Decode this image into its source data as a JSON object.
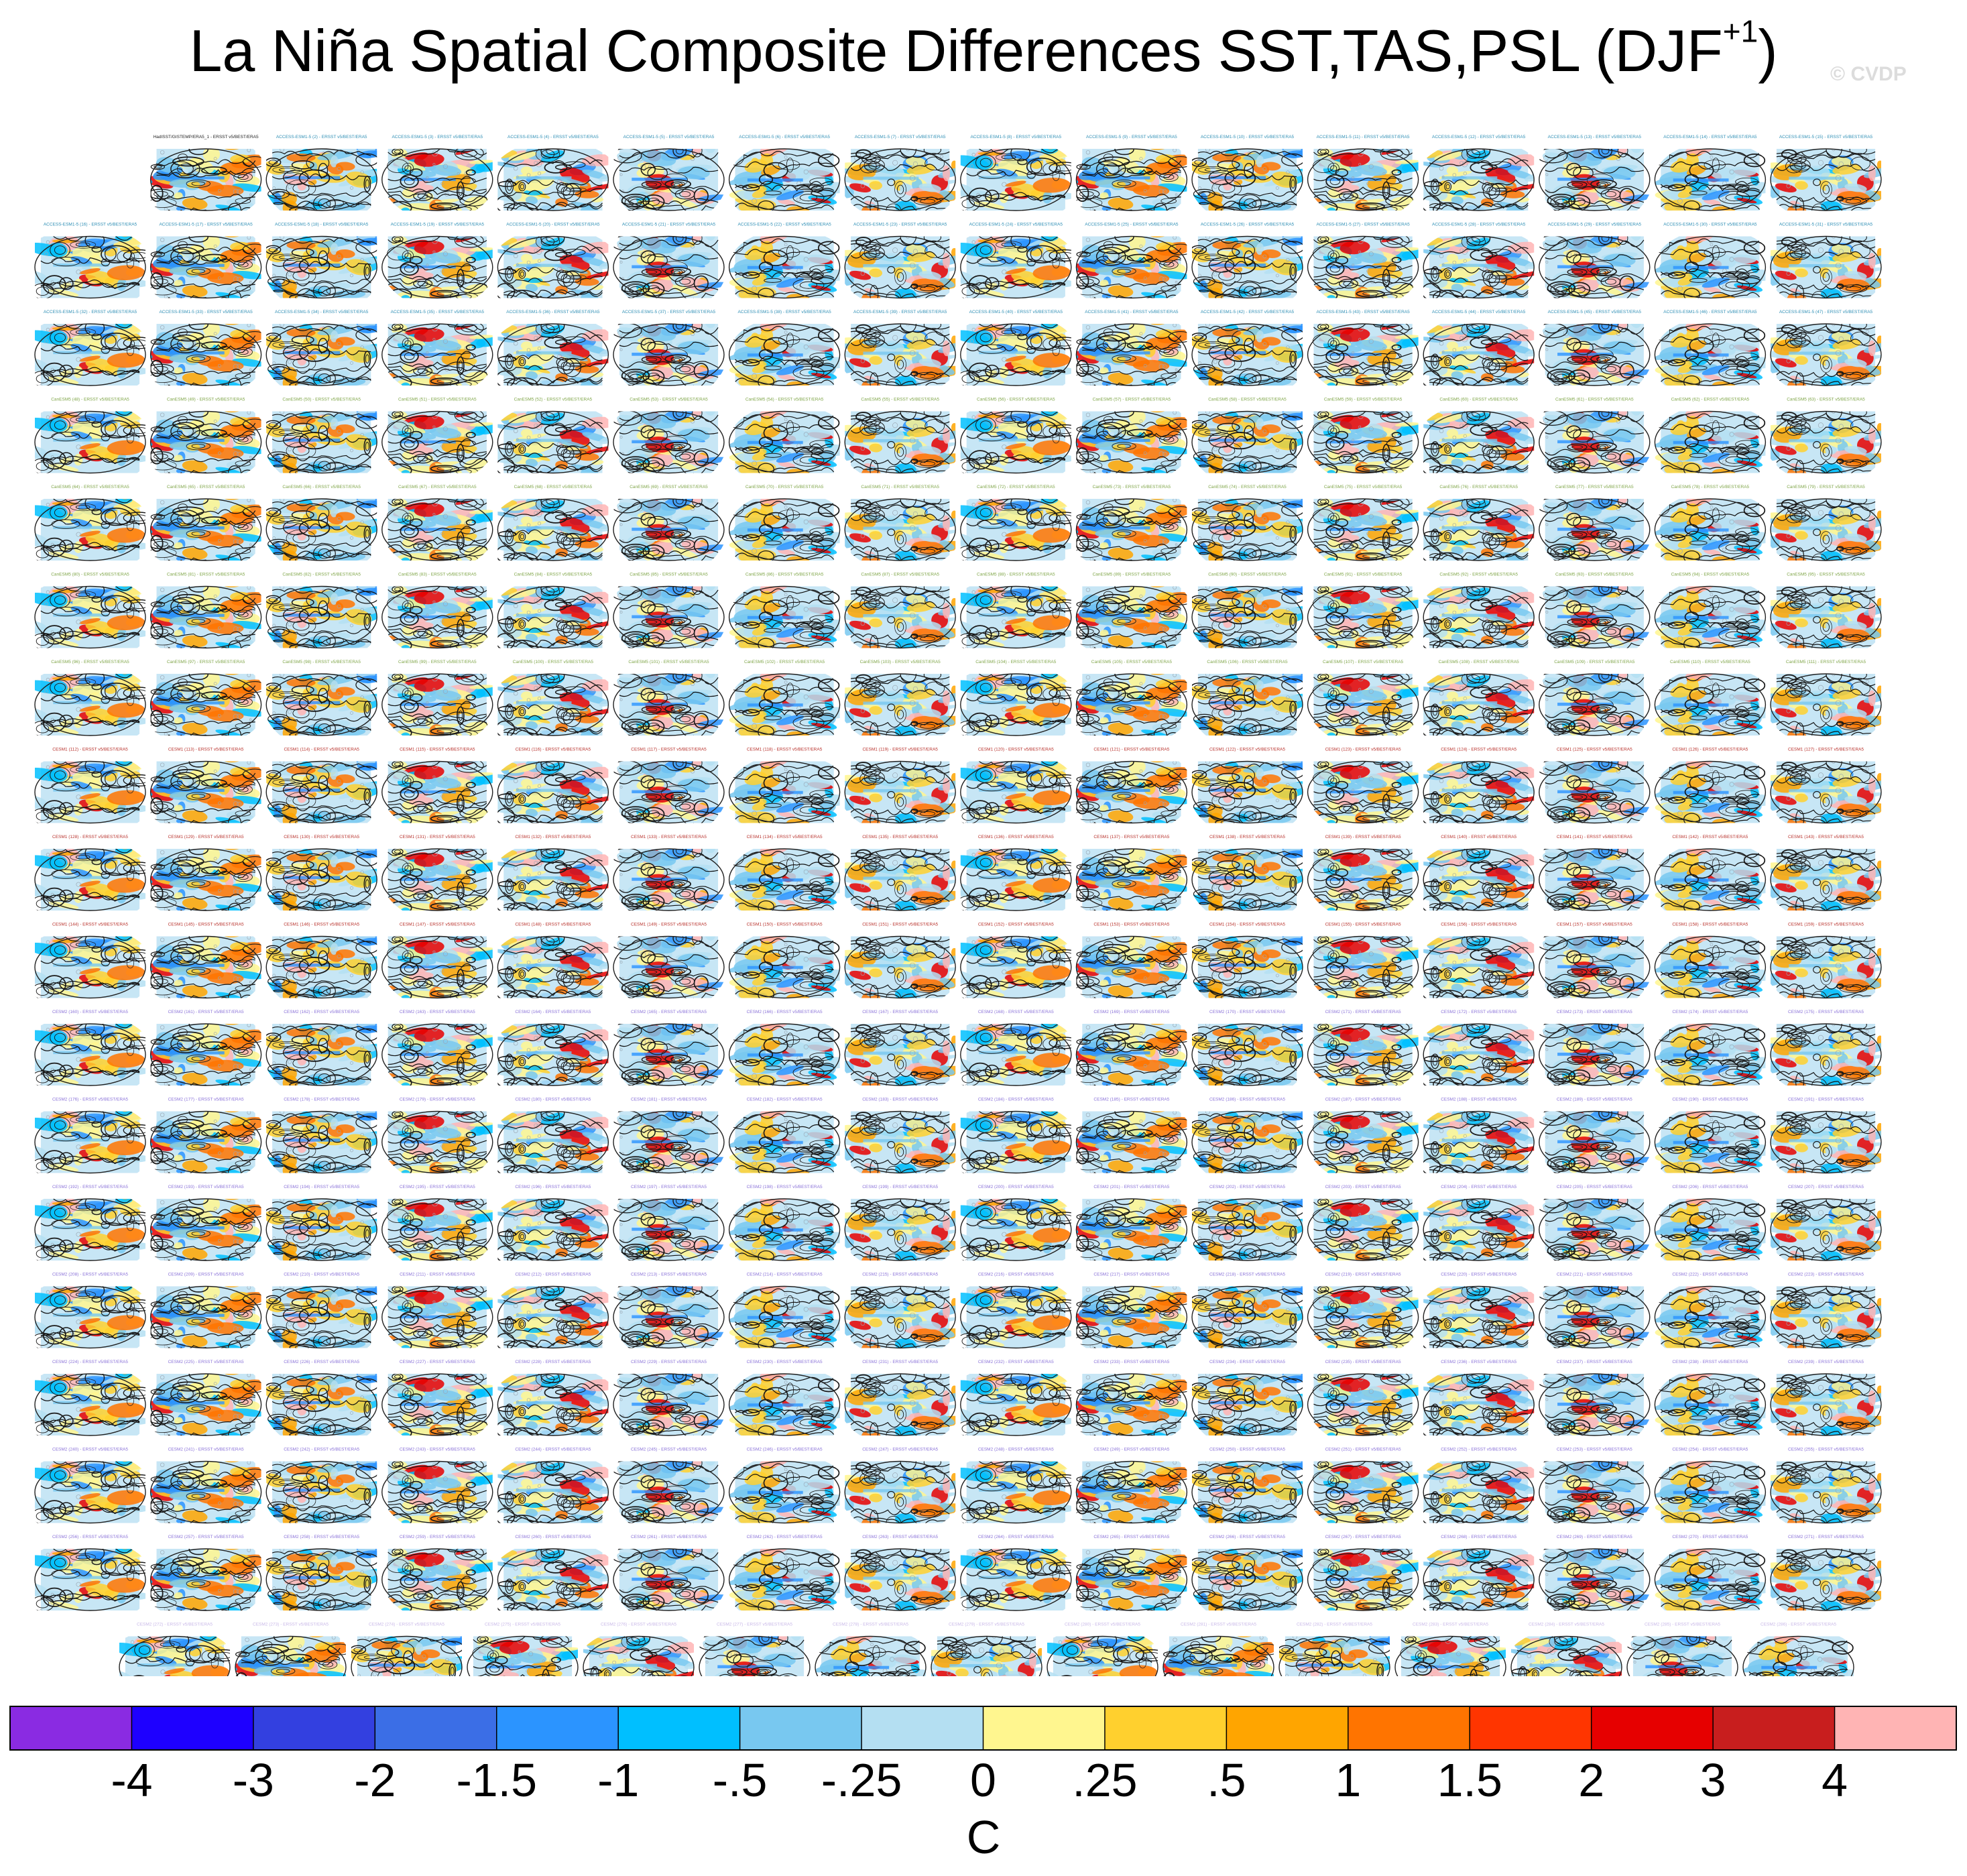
{
  "chart_data": {
    "type": "heatmap",
    "title": "La Niña Spatial Composite Differences SST,TAS,PSL (DJF",
    "title_superscript": "+1",
    "title_closing": ")",
    "watermark": "© CVDP",
    "layout": {
      "rows": 18,
      "columns": 16,
      "panel_count": 286,
      "first_row_panels": 15,
      "last_row_panels": 15
    },
    "first_panel_caption": "HadISST/GISTEMP/ERA5_1 - ERSST v5/BEST/ERA5",
    "panel_caption_groups": [
      {
        "model": "ACCESS-ESM1-5",
        "color": "#2f8fb5",
        "rows": [
          0,
          1,
          2
        ]
      },
      {
        "model": "CanESM5",
        "color": "#7fa548",
        "rows": [
          3,
          4,
          5,
          6
        ]
      },
      {
        "model": "CESM1",
        "color": "#b8322c",
        "rows": [
          7,
          8,
          9
        ]
      },
      {
        "model": "CESM2",
        "color": "#8a72d8",
        "rows": [
          10,
          11,
          12,
          13,
          14,
          15,
          16
        ]
      },
      {
        "model": "CESM2",
        "color": "#c9b9e8",
        "rows": [
          17
        ]
      }
    ],
    "colorbar": {
      "units": "C",
      "tick_labels": [
        "-4",
        "-3",
        "-2",
        "-1.5",
        "-1",
        "-.5",
        "-.25",
        "0",
        ".25",
        ".5",
        "1",
        "1.5",
        "2",
        "3",
        "4"
      ],
      "colors": [
        "#8a2be2",
        "#1e00ff",
        "#3340e0",
        "#3b6ee6",
        "#2b94ff",
        "#00bfff",
        "#78c8f0",
        "#b4dff2",
        "#fff68f",
        "#ffd02e",
        "#ffa500",
        "#ff7400",
        "#ff3500",
        "#e60000",
        "#c81e1e",
        "#ffb4b4"
      ]
    }
  }
}
